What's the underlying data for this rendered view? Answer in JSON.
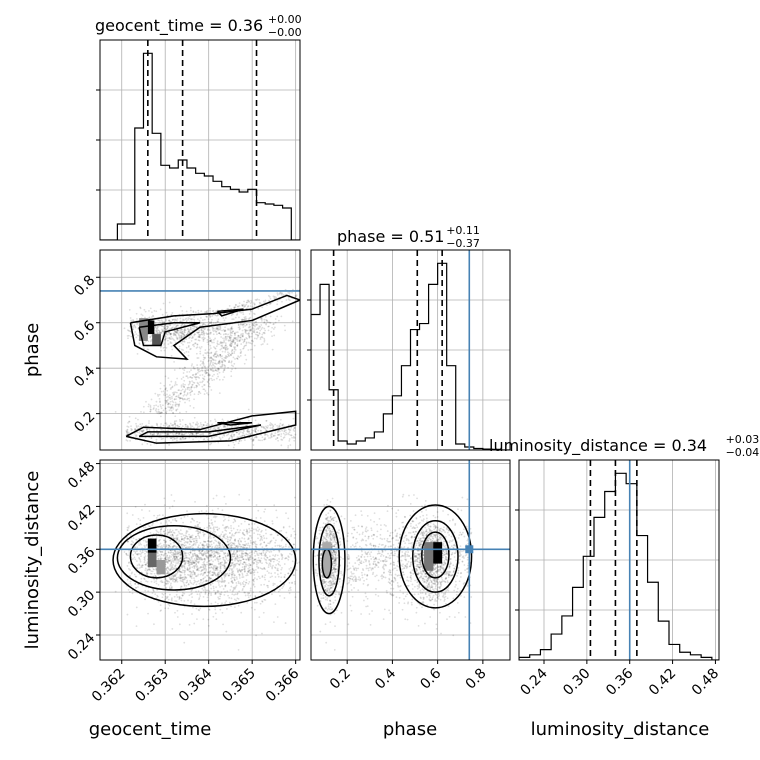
{
  "chart_data": {
    "type": "corner",
    "parameters": [
      "geocent_time",
      "phase",
      "luminosity_distance"
    ],
    "titles": [
      {
        "name": "geocent_time",
        "value": "0.36",
        "plus": "+0.00",
        "minus": "−0.00"
      },
      {
        "name": "phase",
        "value": "0.51",
        "plus": "+0.11",
        "minus": "−0.37"
      },
      {
        "name": "luminosity_distance",
        "value": "0.34",
        "plus": "+0.03",
        "minus": "−0.04"
      }
    ],
    "axis_labels": {
      "x": [
        "geocent_time",
        "phase",
        "luminosity_distance"
      ],
      "y": [
        "phase",
        "luminosity_distance"
      ]
    },
    "ticks": {
      "geocent_time": [
        "0.362",
        "0.363",
        "0.364",
        "0.365",
        "0.366"
      ],
      "phase": [
        "0.2",
        "0.4",
        "0.6",
        "0.8"
      ],
      "luminosity_distance": [
        "0.24",
        "0.30",
        "0.36",
        "0.42",
        "0.48"
      ]
    },
    "ranges": {
      "geocent_time": [
        0.3615,
        0.3661
      ],
      "phase": [
        0.04,
        0.92
      ],
      "luminosity_distance": [
        0.205,
        0.485
      ]
    },
    "truths": {
      "phase": 0.74,
      "luminosity_distance": 0.36
    },
    "truth_color": "#4682b4",
    "quantiles": {
      "geocent_time": [
        0.3626,
        0.3634,
        0.3651
      ],
      "phase": [
        0.14,
        0.51,
        0.62
      ],
      "luminosity_distance": [
        0.305,
        0.34,
        0.37
      ]
    },
    "histograms": {
      "geocent_time": {
        "edges": [
          0.3615,
          0.3619,
          0.3623,
          0.3625,
          0.3627,
          0.3629,
          0.3631,
          0.3633,
          0.3635,
          0.3637,
          0.3639,
          0.3641,
          0.3643,
          0.3645,
          0.3647,
          0.3649,
          0.3651,
          0.3653,
          0.3655,
          0.3657,
          0.3659,
          0.3661
        ],
        "counts": [
          0,
          6,
          42,
          70,
          40,
          28,
          27,
          30,
          27,
          25,
          24,
          22,
          20,
          19,
          18,
          19,
          14,
          13.5,
          13,
          12,
          0
        ]
      },
      "phase": {
        "edges": [
          0.04,
          0.08,
          0.12,
          0.16,
          0.2,
          0.24,
          0.28,
          0.32,
          0.36,
          0.4,
          0.44,
          0.48,
          0.52,
          0.56,
          0.6,
          0.64,
          0.68,
          0.72,
          0.76,
          0.8,
          0.84,
          0.88,
          0.92
        ],
        "counts": [
          45,
          55,
          20,
          3,
          2,
          3,
          4,
          6,
          12,
          18,
          28,
          40,
          42,
          55,
          62,
          28,
          2,
          1,
          0.5,
          0.3,
          0.2,
          0
        ]
      },
      "luminosity_distance": {
        "edges": [
          0.205,
          0.22,
          0.235,
          0.25,
          0.265,
          0.28,
          0.295,
          0.31,
          0.325,
          0.34,
          0.355,
          0.37,
          0.385,
          0.4,
          0.415,
          0.43,
          0.445,
          0.46,
          0.475,
          0.485
        ],
        "counts": [
          1,
          2,
          4,
          10,
          17,
          28,
          40,
          55,
          65,
          72,
          68,
          48,
          30,
          15,
          6,
          3,
          2,
          1,
          0
        ]
      }
    },
    "grid": true
  }
}
